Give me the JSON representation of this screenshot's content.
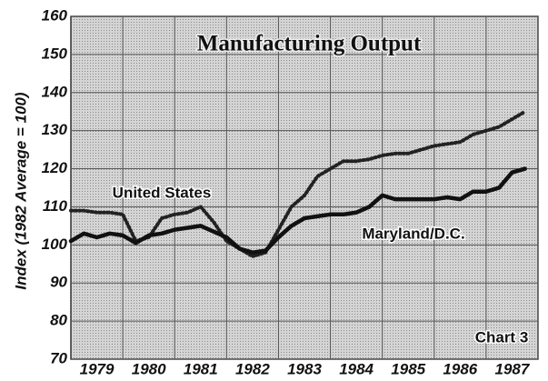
{
  "chart_data": {
    "type": "line",
    "title": "Manufacturing Output",
    "y_label": "Index (1982 Average = 100)",
    "annotations": [
      "United States",
      "Maryland/D.C.",
      "Chart 3"
    ],
    "x": [
      1979,
      1979.25,
      1979.5,
      1979.75,
      1980,
      1980.25,
      1980.5,
      1980.75,
      1981,
      1981.25,
      1981.5,
      1981.75,
      1982,
      1982.25,
      1982.5,
      1982.75,
      1983,
      1983.25,
      1983.5,
      1983.75,
      1984,
      1984.25,
      1984.5,
      1984.75,
      1985,
      1985.25,
      1985.5,
      1985.75,
      1986,
      1986.25,
      1986.5,
      1986.75,
      1987,
      1987.25,
      1987.5,
      1987.75
    ],
    "series": [
      {
        "name": "United States",
        "color": "#222222",
        "style": "dotted",
        "values": [
          109,
          109,
          108.5,
          108.5,
          108,
          101,
          102,
          107,
          108,
          108.5,
          110,
          106,
          101,
          99,
          97,
          98,
          104,
          110,
          113,
          118,
          120,
          122,
          122,
          122.5,
          123.5,
          124,
          124,
          125,
          126,
          126.5,
          127,
          129,
          130,
          131,
          133,
          135
        ]
      },
      {
        "name": "Maryland/D.C.",
        "color": "#111111",
        "style": "solid",
        "values": [
          101,
          103,
          102,
          103,
          102.5,
          100.5,
          102.5,
          103,
          104,
          104.5,
          105,
          103.5,
          102,
          99,
          98,
          98.5,
          102,
          105,
          107,
          107.5,
          108,
          108,
          108.5,
          110,
          113,
          112,
          112,
          112,
          112,
          112.5,
          112,
          114,
          114,
          115,
          119,
          120
        ]
      }
    ],
    "xlim": [
      1979,
      1988
    ],
    "xticks": [
      {
        "value": 1979.5,
        "label": "1979"
      },
      {
        "value": 1980.5,
        "label": "1980"
      },
      {
        "value": 1981.5,
        "label": "1981"
      },
      {
        "value": 1982.5,
        "label": "1982"
      },
      {
        "value": 1983.5,
        "label": "1983"
      },
      {
        "value": 1984.5,
        "label": "1984"
      },
      {
        "value": 1985.5,
        "label": "1985"
      },
      {
        "value": 1986.5,
        "label": "1986"
      },
      {
        "value": 1987.5,
        "label": "1987"
      }
    ],
    "ylim": [
      70,
      160
    ],
    "yticks": [
      70,
      80,
      90,
      100,
      110,
      120,
      130,
      140,
      150,
      160
    ],
    "grid": true
  }
}
